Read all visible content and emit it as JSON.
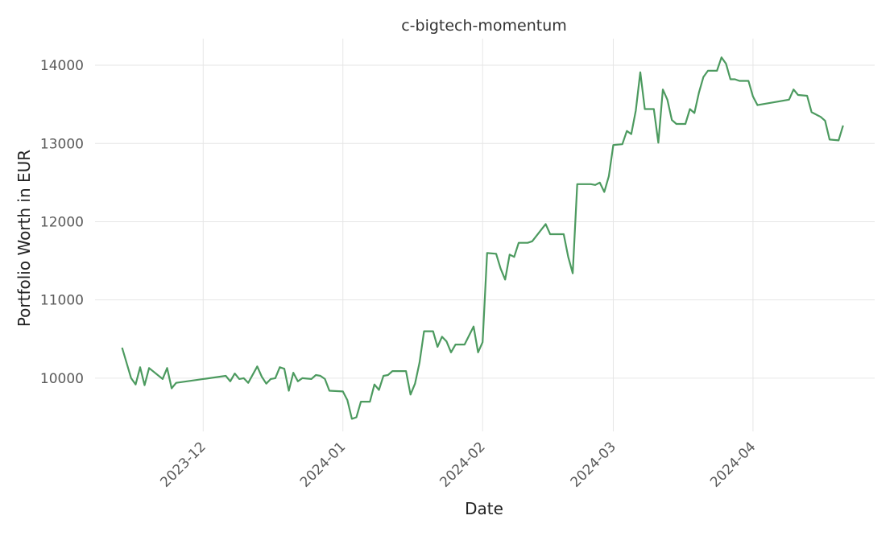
{
  "chart_data": {
    "type": "line",
    "title": "c-bigtech-momentum",
    "xlabel": "Date",
    "ylabel": "Portfolio Worth in EUR",
    "x_tick_labels": [
      "2023-12",
      "2024-01",
      "2024-02",
      "2024-03",
      "2024-04"
    ],
    "y_ticks": [
      10000,
      11000,
      12000,
      13000,
      14000
    ],
    "xlim": [
      "2023-11-07",
      "2024-04-28"
    ],
    "ylim": [
      9320,
      14340
    ],
    "grid": true,
    "line_color": "#4c9a5f",
    "series": [
      {
        "name": "",
        "points": [
          [
            "2023-11-13",
            10390
          ],
          [
            "2023-11-15",
            10000
          ],
          [
            "2023-11-16",
            9920
          ],
          [
            "2023-11-17",
            10140
          ],
          [
            "2023-11-18",
            9910
          ],
          [
            "2023-11-19",
            10130
          ],
          [
            "2023-11-22",
            9990
          ],
          [
            "2023-11-23",
            10130
          ],
          [
            "2023-11-24",
            9870
          ],
          [
            "2023-11-25",
            9940
          ],
          [
            "2023-12-06",
            10030
          ],
          [
            "2023-12-07",
            9960
          ],
          [
            "2023-12-08",
            10060
          ],
          [
            "2023-12-09",
            9990
          ],
          [
            "2023-12-10",
            10000
          ],
          [
            "2023-12-11",
            9940
          ],
          [
            "2023-12-13",
            10150
          ],
          [
            "2023-12-14",
            10020
          ],
          [
            "2023-12-15",
            9930
          ],
          [
            "2023-12-16",
            9990
          ],
          [
            "2023-12-17",
            10000
          ],
          [
            "2023-12-18",
            10140
          ],
          [
            "2023-12-19",
            10120
          ],
          [
            "2023-12-20",
            9840
          ],
          [
            "2023-12-21",
            10070
          ],
          [
            "2023-12-22",
            9960
          ],
          [
            "2023-12-23",
            10000
          ],
          [
            "2023-12-25",
            9990
          ],
          [
            "2023-12-26",
            10040
          ],
          [
            "2023-12-27",
            10030
          ],
          [
            "2023-12-28",
            9990
          ],
          [
            "2023-12-29",
            9840
          ],
          [
            "2024-01-01",
            9830
          ],
          [
            "2024-01-02",
            9720
          ],
          [
            "2024-01-03",
            9480
          ],
          [
            "2024-01-04",
            9500
          ],
          [
            "2024-01-05",
            9700
          ],
          [
            "2024-01-07",
            9700
          ],
          [
            "2024-01-08",
            9920
          ],
          [
            "2024-01-09",
            9850
          ],
          [
            "2024-01-10",
            10030
          ],
          [
            "2024-01-11",
            10040
          ],
          [
            "2024-01-12",
            10090
          ],
          [
            "2024-01-15",
            10090
          ],
          [
            "2024-01-16",
            9790
          ],
          [
            "2024-01-17",
            9930
          ],
          [
            "2024-01-18",
            10200
          ],
          [
            "2024-01-19",
            10600
          ],
          [
            "2024-01-21",
            10600
          ],
          [
            "2024-01-22",
            10400
          ],
          [
            "2024-01-23",
            10530
          ],
          [
            "2024-01-24",
            10470
          ],
          [
            "2024-01-25",
            10330
          ],
          [
            "2024-01-26",
            10430
          ],
          [
            "2024-01-28",
            10430
          ],
          [
            "2024-01-30",
            10660
          ],
          [
            "2024-01-31",
            10330
          ],
          [
            "2024-02-01",
            10460
          ],
          [
            "2024-02-02",
            11600
          ],
          [
            "2024-02-04",
            11590
          ],
          [
            "2024-02-05",
            11400
          ],
          [
            "2024-02-06",
            11260
          ],
          [
            "2024-02-07",
            11580
          ],
          [
            "2024-02-08",
            11550
          ],
          [
            "2024-02-09",
            11730
          ],
          [
            "2024-02-11",
            11730
          ],
          [
            "2024-02-12",
            11750
          ],
          [
            "2024-02-15",
            11970
          ],
          [
            "2024-02-16",
            11840
          ],
          [
            "2024-02-19",
            11840
          ],
          [
            "2024-02-20",
            11550
          ],
          [
            "2024-02-21",
            11340
          ],
          [
            "2024-02-22",
            12480
          ],
          [
            "2024-02-25",
            12480
          ],
          [
            "2024-02-26",
            12470
          ],
          [
            "2024-02-27",
            12500
          ],
          [
            "2024-02-28",
            12380
          ],
          [
            "2024-02-29",
            12580
          ],
          [
            "2024-03-01",
            12980
          ],
          [
            "2024-03-03",
            12990
          ],
          [
            "2024-03-04",
            13160
          ],
          [
            "2024-03-05",
            13120
          ],
          [
            "2024-03-06",
            13420
          ],
          [
            "2024-03-07",
            13910
          ],
          [
            "2024-03-08",
            13440
          ],
          [
            "2024-03-10",
            13440
          ],
          [
            "2024-03-11",
            13010
          ],
          [
            "2024-03-12",
            13690
          ],
          [
            "2024-03-13",
            13560
          ],
          [
            "2024-03-14",
            13300
          ],
          [
            "2024-03-15",
            13250
          ],
          [
            "2024-03-17",
            13250
          ],
          [
            "2024-03-18",
            13440
          ],
          [
            "2024-03-19",
            13390
          ],
          [
            "2024-03-20",
            13650
          ],
          [
            "2024-03-21",
            13850
          ],
          [
            "2024-03-22",
            13930
          ],
          [
            "2024-03-24",
            13930
          ],
          [
            "2024-03-25",
            14100
          ],
          [
            "2024-03-26",
            14020
          ],
          [
            "2024-03-27",
            13820
          ],
          [
            "2024-03-28",
            13820
          ],
          [
            "2024-03-29",
            13800
          ],
          [
            "2024-03-31",
            13800
          ],
          [
            "2024-04-01",
            13600
          ],
          [
            "2024-04-02",
            13490
          ],
          [
            "2024-04-09",
            13560
          ],
          [
            "2024-04-10",
            13690
          ],
          [
            "2024-04-11",
            13620
          ],
          [
            "2024-04-13",
            13610
          ],
          [
            "2024-04-14",
            13400
          ],
          [
            "2024-04-16",
            13340
          ],
          [
            "2024-04-17",
            13290
          ],
          [
            "2024-04-18",
            13050
          ],
          [
            "2024-04-20",
            13040
          ],
          [
            "2024-04-21",
            13230
          ]
        ]
      }
    ]
  }
}
